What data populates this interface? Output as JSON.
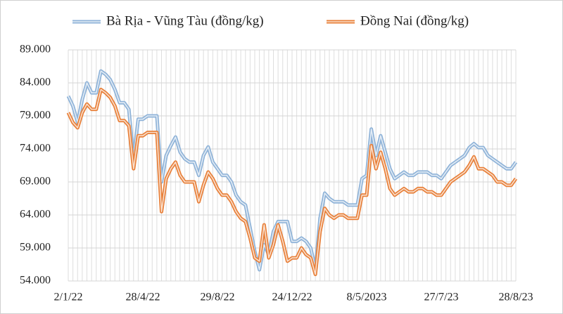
{
  "chart_data": {
    "type": "line",
    "categories": [
      "2/1/22",
      null,
      null,
      null,
      null,
      null,
      null,
      null,
      null,
      null,
      null,
      null,
      null,
      null,
      null,
      null,
      "28/4/22",
      null,
      null,
      null,
      null,
      null,
      null,
      null,
      null,
      null,
      null,
      null,
      null,
      null,
      null,
      null,
      "29/8/22",
      null,
      null,
      null,
      null,
      null,
      null,
      null,
      null,
      null,
      null,
      null,
      null,
      null,
      null,
      null,
      "24/12/22",
      null,
      null,
      null,
      null,
      null,
      null,
      null,
      null,
      null,
      null,
      null,
      null,
      null,
      null,
      null,
      "8/5/2023",
      null,
      null,
      null,
      null,
      null,
      null,
      null,
      null,
      null,
      null,
      null,
      null,
      null,
      null,
      null,
      "27/7/23",
      null,
      null,
      null,
      null,
      null,
      null,
      null,
      null,
      null,
      null,
      null,
      null,
      null,
      null,
      null,
      "28/8/23"
    ],
    "series": [
      {
        "name": "Bà Rịa - Vũng Tàu (đồng/kg)",
        "color": "#8fb3d8",
        "values": [
          82000,
          80500,
          78000,
          81500,
          84000,
          82500,
          82500,
          85800,
          85300,
          84500,
          83000,
          81000,
          81000,
          80000,
          72500,
          78500,
          78500,
          79000,
          79000,
          79000,
          69000,
          73000,
          74500,
          75800,
          73500,
          72500,
          72000,
          72000,
          70000,
          73000,
          74300,
          72000,
          71000,
          70000,
          70000,
          69000,
          67000,
          66000,
          65500,
          62000,
          58500,
          55700,
          59500,
          58000,
          61500,
          63000,
          63000,
          63000,
          60000,
          60000,
          60500,
          60000,
          59000,
          55800,
          63500,
          67300,
          66500,
          66000,
          66000,
          66000,
          65500,
          65500,
          65500,
          69500,
          70000,
          77000,
          73000,
          76000,
          73500,
          71000,
          69500,
          70000,
          70500,
          70000,
          70000,
          70500,
          70500,
          70500,
          70000,
          70000,
          69500,
          70500,
          71500,
          72000,
          72500,
          73000,
          74200,
          74800,
          74200,
          74200,
          73000,
          72500,
          72000,
          71500,
          71000,
          71000,
          72000
        ]
      },
      {
        "name": "Đồng Nai (đồng/kg)",
        "color": "#e8803a",
        "values": [
          79500,
          78000,
          77200,
          79500,
          80800,
          80000,
          80000,
          83000,
          82500,
          81800,
          80500,
          78300,
          78300,
          77500,
          71000,
          76000,
          76000,
          76500,
          76500,
          76500,
          64500,
          69500,
          71000,
          72000,
          70000,
          69000,
          69000,
          69000,
          66000,
          68500,
          70500,
          69500,
          68000,
          67000,
          67000,
          66000,
          64500,
          63500,
          63000,
          60500,
          57500,
          57000,
          62500,
          57500,
          59500,
          62500,
          60000,
          57000,
          57500,
          57500,
          59000,
          58000,
          57500,
          55000,
          61500,
          65000,
          64000,
          63500,
          64000,
          64000,
          63500,
          63500,
          63500,
          67000,
          67000,
          74500,
          71000,
          73500,
          71000,
          68000,
          67000,
          67500,
          68000,
          67500,
          67500,
          68000,
          68000,
          67500,
          67500,
          67000,
          67000,
          68000,
          69000,
          69500,
          70000,
          70500,
          71500,
          72800,
          71000,
          71000,
          70500,
          70000,
          69000,
          69000,
          68500,
          68500,
          69500
        ]
      }
    ],
    "ylim": [
      54000,
      89000
    ],
    "yticks": [
      {
        "value": 54000,
        "label": "54.000"
      },
      {
        "value": 59000,
        "label": "59.000"
      },
      {
        "value": 64000,
        "label": "64.000"
      },
      {
        "value": 69000,
        "label": "69.000"
      },
      {
        "value": 74000,
        "label": "74.000"
      },
      {
        "value": 79000,
        "label": "79.000"
      },
      {
        "value": 84000,
        "label": "84.000"
      },
      {
        "value": 89000,
        "label": "89.000"
      }
    ],
    "grid": true,
    "legend": "top"
  }
}
